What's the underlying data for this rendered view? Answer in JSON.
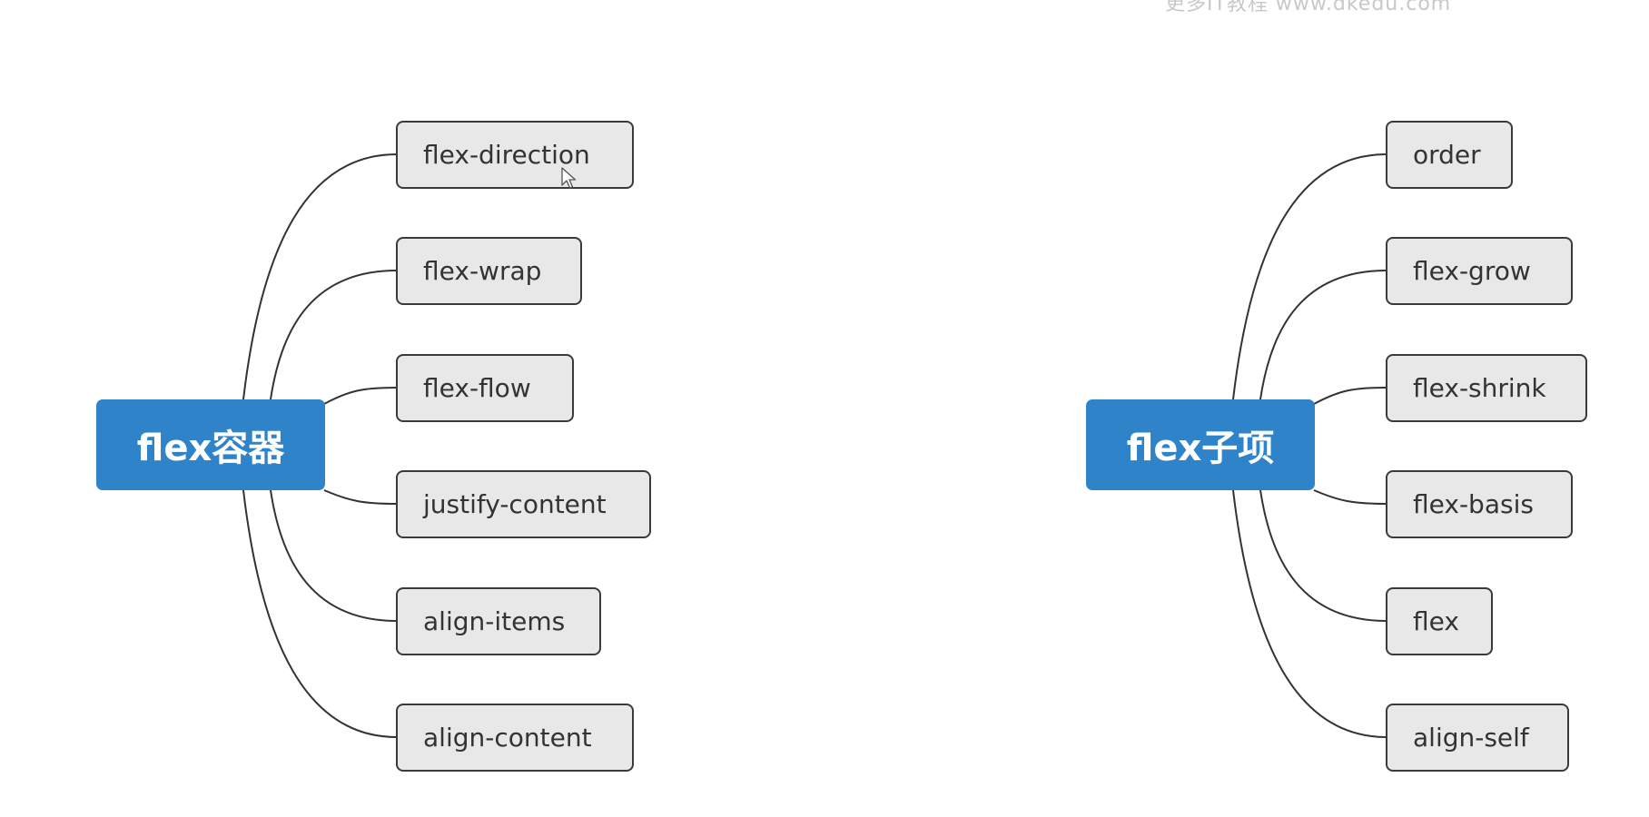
{
  "watermark": "更多IT教程 www.dkedu.com",
  "colors": {
    "root_fill": "#2f83c9",
    "child_fill": "#e8e8e8",
    "child_border": "#3a3a3a",
    "connector": "#333333"
  },
  "mindmaps": [
    {
      "root": "flex容器",
      "children": [
        "flex-direction",
        "flex-wrap",
        "flex-flow",
        "justify-content",
        "align-items",
        "align-content"
      ]
    },
    {
      "root": "flex子项",
      "children": [
        "order",
        "flex-grow",
        "flex-shrink",
        "flex-basis",
        "flex",
        "align-self"
      ]
    }
  ]
}
